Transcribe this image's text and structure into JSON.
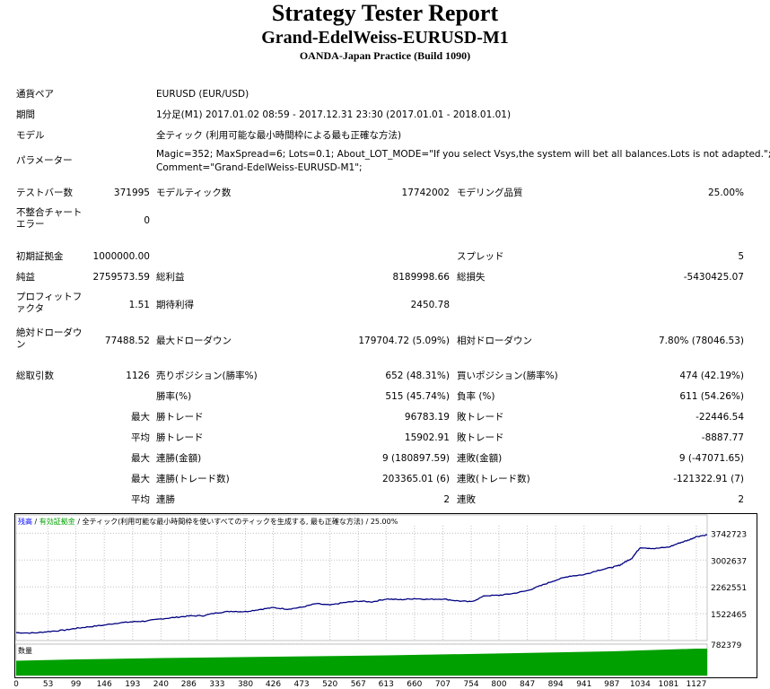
{
  "header": {
    "title": "Strategy Tester Report",
    "subtitle": "Grand-EdelWeiss-EURUSD-M1",
    "build": "OANDA-Japan Practice (Build 1090)"
  },
  "info": {
    "pair_label": "通貨ペア",
    "pair_value": "EURUSD (EUR/USD)",
    "period_label": "期間",
    "period_value": "1分足(M1) 2017.01.02 08:59 - 2017.12.31 23:30 (2017.01.01 - 2018.01.01)",
    "model_label": "モデル",
    "model_value": "全ティック (利用可能な最小時間枠による最も正確な方法)",
    "params_label": "パラメーター",
    "params_line1": "Magic=352; MaxSpread=6; Lots=0.1; About_LOT_MODE=\"If you select Vsys,the system will bet all balances.Lots is not adapted.\";",
    "params_line2": "Comment=\"Grand-EdelWeiss-EURUSD-M1\";"
  },
  "stats": {
    "bars_label": "テストバー数",
    "bars_value": "371995",
    "ticks_label": "モデルティック数",
    "ticks_value": "17742002",
    "quality_label": "モデリング品質",
    "quality_value": "25.00%",
    "mismatch_label": "不整合チャートエラー",
    "mismatch_value": "0",
    "deposit_label": "初期証拠金",
    "deposit_value": "1000000.00",
    "spread_label": "スプレッド",
    "spread_value": "5",
    "netprofit_label": "純益",
    "netprofit_value": "2759573.59",
    "grossprofit_label": "総利益",
    "grossprofit_value": "8189998.66",
    "grossloss_label": "総損失",
    "grossloss_value": "-5430425.07",
    "pf_label": "プロフィットファクタ",
    "pf_value": "1.51",
    "expected_label": "期待利得",
    "expected_value": "2450.78",
    "absdd_label": "絶対ドローダウン",
    "absdd_value": "77488.52",
    "maxdd_label": "最大ドローダウン",
    "maxdd_value": "179704.72 (5.09%)",
    "reldd_label": "相対ドローダウン",
    "reldd_value": "7.80% (78046.53)",
    "trades_label": "総取引数",
    "trades_value": "1126",
    "short_label": "売りポジション(勝率%)",
    "short_value": "652 (48.31%)",
    "long_label": "買いポジション(勝率%)",
    "long_value": "474 (42.19%)",
    "win_label": "勝率(%)",
    "win_value": "515 (45.74%)",
    "loss_label": "負率 (%)",
    "loss_value": "611 (54.26%)",
    "max1_label": "最大",
    "lwin_label": "勝トレード",
    "lwin_value": "96783.19",
    "lloss_label": "敗トレード",
    "lloss_value": "-22446.54",
    "avg1_label": "平均",
    "awin_label": "勝トレード",
    "awin_value": "15902.91",
    "aloss_label": "敗トレード",
    "aloss_value": "-8887.77",
    "max2_label": "最大",
    "mcw_label": "連勝(金額)",
    "mcw_value": "9 (180897.59)",
    "mcl_label": "連敗(金額)",
    "mcl_value": "9 (-47071.65)",
    "max3_label": "最大",
    "mcp_label": "連勝(トレード数)",
    "mcp_value": "203365.01 (6)",
    "mcpl_label": "連敗(トレード数)",
    "mcpl_value": "-121322.91 (7)",
    "avg2_label": "平均",
    "acw_label": "連勝",
    "acw_value": "2",
    "acl_label": "連敗",
    "acl_value": "2"
  },
  "chart_data": {
    "type": "line",
    "legend": {
      "balance": "残高",
      "sep1": " / ",
      "equity": "有効証拠金",
      "rest": " / 全ティック(利用可能な最小時間枠を使いすべてのティックを生成する, 最も正確な方法) / 25.00%"
    },
    "volume_label": "数量",
    "colors": {
      "balance": "#000080",
      "equity": "#00a000",
      "volume": "#00a000",
      "legend_balance": "#0000ff"
    },
    "y_ticks": [
      "3742723",
      "3002637",
      "2262551",
      "1522465",
      "782379"
    ],
    "y_tick_values": [
      3742723,
      3002637,
      2262551,
      1522465,
      782379
    ],
    "ylim": [
      782379,
      3950000
    ],
    "x_ticks": [
      "0",
      "53",
      "99",
      "146",
      "193",
      "240",
      "286",
      "333",
      "380",
      "426",
      "473",
      "520",
      "567",
      "613",
      "660",
      "707",
      "754",
      "800",
      "847",
      "894",
      "941",
      "987",
      "1034",
      "1081",
      "1127"
    ],
    "xlim": [
      0,
      1145
    ],
    "balance": {
      "x": [
        0,
        30,
        53,
        80,
        99,
        120,
        146,
        170,
        193,
        215,
        240,
        263,
        286,
        310,
        333,
        356,
        380,
        403,
        426,
        450,
        473,
        497,
        520,
        543,
        567,
        590,
        613,
        637,
        660,
        683,
        707,
        730,
        754,
        777,
        800,
        823,
        847,
        870,
        894,
        917,
        941,
        964,
        987,
        1000,
        1010,
        1020,
        1034,
        1058,
        1081,
        1100,
        1115,
        1127,
        1145
      ],
      "y": [
        1000000,
        990000,
        1030000,
        1070000,
        1120000,
        1160000,
        1210000,
        1270000,
        1300000,
        1320000,
        1380000,
        1420000,
        1460000,
        1470000,
        1550000,
        1590000,
        1580000,
        1640000,
        1690000,
        1650000,
        1700000,
        1800000,
        1760000,
        1830000,
        1870000,
        1850000,
        1930000,
        1910000,
        1940000,
        1920000,
        1930000,
        1880000,
        1850000,
        2020000,
        2030000,
        2080000,
        2160000,
        2300000,
        2450000,
        2560000,
        2600000,
        2720000,
        2800000,
        2860000,
        2960000,
        3050000,
        3350000,
        3320000,
        3360000,
        3480000,
        3560000,
        3650000,
        3700000
      ]
    },
    "volume": {
      "x": [
        0,
        99,
        240,
        426,
        613,
        800,
        987,
        1127,
        1145
      ],
      "y": [
        0.55,
        0.6,
        0.65,
        0.7,
        0.75,
        0.82,
        0.9,
        1.0,
        1.0
      ]
    }
  }
}
